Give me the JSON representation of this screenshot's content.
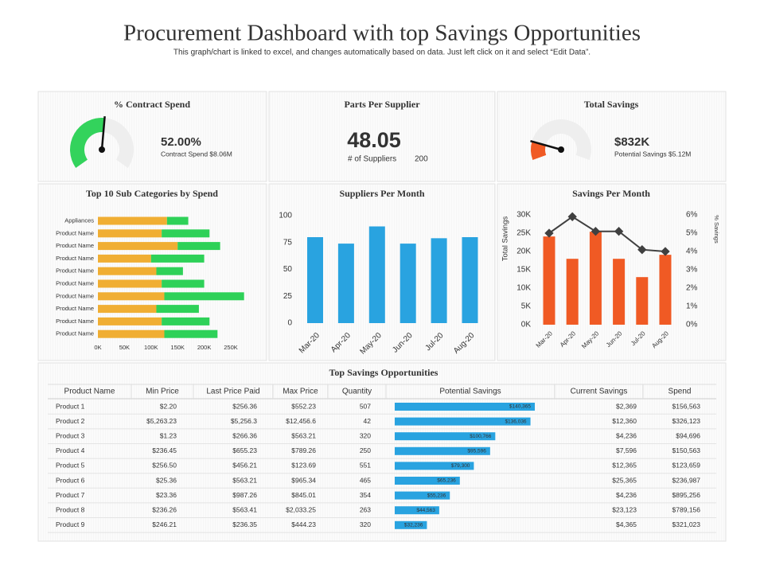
{
  "header": {
    "title": "Procurement Dashboard with top Savings Opportunities",
    "subtitle": "This graph/chart is linked to excel, and changes automatically based on data. Just left click on it and select “Edit Data”."
  },
  "chart_data": [
    {
      "type": "gauge",
      "title": "% Contract Spend",
      "value": 52,
      "value_label": "52.00%",
      "caption": "Contract Spend $8.06M",
      "ylim": [
        0,
        100
      ],
      "color": "#33d35c"
    },
    {
      "type": "kpi",
      "title": "Parts Per Supplier",
      "value": 48.05,
      "caption": "# of Suppliers",
      "suppliers": 200,
      "color": "#29a3e0"
    },
    {
      "type": "gauge",
      "title": "Total Savings",
      "value": 832,
      "value_label": "$832K",
      "caption": "Potential Savings $5.12M",
      "ylim": [
        0,
        5120
      ],
      "color": "#f05a24"
    },
    {
      "type": "hbar",
      "title": "Top 10 Sub Categories by Spend",
      "categories": [
        "Appliances",
        "Product Name",
        "Product Name",
        "Product Name",
        "Product Name",
        "Product Name",
        "Product Name",
        "Product Name",
        "Product Name",
        "Product Name"
      ],
      "series": [
        {
          "color": "#f0ae33",
          "values": [
            130,
            120,
            150,
            100,
            110,
            120,
            125,
            110,
            120,
            125
          ]
        },
        {
          "color": "#2ed158",
          "values": [
            40,
            90,
            80,
            100,
            50,
            80,
            150,
            80,
            90,
            100
          ]
        }
      ],
      "xlim": [
        0,
        275
      ],
      "xticks": [
        {
          "value": 0,
          "label": "0K"
        },
        {
          "value": 50,
          "label": "50K"
        },
        {
          "value": 100,
          "label": "100K"
        },
        {
          "value": 150,
          "label": "150K"
        },
        {
          "value": 200,
          "label": "200K"
        },
        {
          "value": 250,
          "label": "250K"
        }
      ]
    },
    {
      "type": "bar",
      "title": "Suppliers Per Month",
      "categories": [
        "Mar-20",
        "Apr-20",
        "May-20",
        "Jun-20",
        "Jul-20",
        "Aug-20"
      ],
      "values": [
        80,
        74,
        90,
        74,
        79,
        80
      ],
      "color": "#29a3e0",
      "ylim": [
        0,
        100
      ],
      "yticks": [
        0,
        25,
        50,
        75,
        100
      ]
    },
    {
      "type": "combo",
      "title": "Savings Per Month",
      "categories": [
        "Mar-20",
        "Apr-20",
        "May-20",
        "Jun-20",
        "Jul-20",
        "Aug-20"
      ],
      "series": [
        {
          "color": "#f05a24",
          "values": [
            24.1,
            18,
            25.4,
            18,
            13,
            19.1
          ]
        },
        {
          "type": "line",
          "axis": "y2",
          "color": "#404040",
          "values": [
            5,
            5.9,
            5.1,
            5.1,
            4.1,
            4.0
          ]
        }
      ],
      "ylabel": "Total Savings",
      "y2label": "% Savings",
      "ylim": [
        0,
        30
      ],
      "yticks": [
        {
          "value": 0,
          "label": "0K"
        },
        {
          "value": 5,
          "label": "5K"
        },
        {
          "value": 10,
          "label": "10K"
        },
        {
          "value": 15,
          "label": "15K"
        },
        {
          "value": 20,
          "label": "20K"
        },
        {
          "value": 25,
          "label": "25K"
        },
        {
          "value": 30,
          "label": "30K"
        }
      ],
      "y2lim": [
        0,
        6
      ],
      "y2ticks": [
        {
          "value": 0,
          "label": "0%"
        },
        {
          "value": 1,
          "label": "1%"
        },
        {
          "value": 2,
          "label": "2%"
        },
        {
          "value": 3,
          "label": "3%"
        },
        {
          "value": 4,
          "label": "4%"
        },
        {
          "value": 5,
          "label": "5%"
        },
        {
          "value": 6,
          "label": "6%"
        }
      ]
    }
  ],
  "table": {
    "title": "Top Savings Opportunities",
    "columns": [
      "Product Name",
      "Min Price",
      "Last Price Paid",
      "Max Price",
      "Quantity",
      "Potential Savings",
      "Current Savings",
      "Spend"
    ],
    "rows": [
      [
        "Product 1",
        "$2.20",
        "$256.36",
        "$552.23",
        "507",
        "$2,369",
        "$156,563"
      ],
      [
        "Product 2",
        "$5,263.23",
        "$5,256.3",
        "$12,456.6",
        "42",
        "$12,360",
        "$326,123"
      ],
      [
        "Product 3",
        "$1.23",
        "$266.36",
        "$563.21",
        "320",
        "$4,236",
        "$94,696"
      ],
      [
        "Product 4",
        "$236.45",
        "$655.23",
        "$789.26",
        "250",
        "$7,596",
        "$150,563"
      ],
      [
        "Product 5",
        "$256.50",
        "$456.21",
        "$123.69",
        "551",
        "$12,365",
        "$123,659"
      ],
      [
        "Product 6",
        "$25.36",
        "$563.21",
        "$965.34",
        "465",
        "$25,365",
        "$236,987"
      ],
      [
        "Product 7",
        "$23.36",
        "$987.26",
        "$845.01",
        "354",
        "$4,236",
        "$895,256"
      ],
      [
        "Product 8",
        "$236.26",
        "$563.41",
        "$2,033.25",
        "263",
        "$23,123",
        "$789,156"
      ],
      [
        "Product 9",
        "$246.21",
        "$236.35",
        "$444.23",
        "320",
        "$4,365",
        "$321,023"
      ]
    ],
    "potential_savings": {
      "color": "#29a3e0",
      "values": [
        140365,
        136036,
        100766,
        95596,
        79300,
        65236,
        55236,
        44563,
        32236
      ],
      "value_labels": [
        "$140,365",
        "$136,036",
        "$100,766",
        "$95,596",
        "$79,300",
        "$65,236",
        "$55,236",
        "$44,563",
        "$32,236"
      ]
    }
  }
}
